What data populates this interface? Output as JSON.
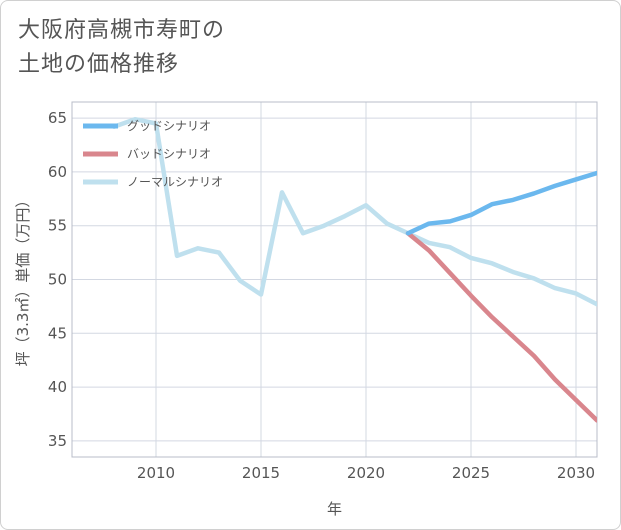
{
  "title": "大阪府高槻市寿町の\n土地の価格推移",
  "chart_data": {
    "type": "line",
    "xlabel": "年",
    "ylabel": "坪（3.3㎡）単価（万円）",
    "xlim": [
      2006,
      2031
    ],
    "ylim": [
      33.5,
      66.5
    ],
    "x_ticks": [
      2010,
      2015,
      2020,
      2025,
      2030
    ],
    "y_ticks": [
      35,
      40,
      45,
      50,
      55,
      60,
      65
    ],
    "grid": true,
    "legend_position": "top-left",
    "series": [
      {
        "name": "グッドシナリオ",
        "color": "#6bb8ee",
        "width": 4.5,
        "x": [
          2022,
          2023,
          2024,
          2025,
          2026,
          2027,
          2028,
          2029,
          2030,
          2031
        ],
        "y": [
          54.3,
          55.2,
          55.4,
          56.0,
          57.0,
          57.4,
          58.0,
          58.7,
          59.3,
          59.9
        ]
      },
      {
        "name": "バッドシナリオ",
        "color": "#d9868d",
        "width": 4.5,
        "x": [
          2022,
          2023,
          2024,
          2025,
          2026,
          2027,
          2028,
          2029,
          2030,
          2031
        ],
        "y": [
          54.3,
          52.7,
          50.6,
          48.5,
          46.5,
          44.7,
          42.9,
          40.7,
          38.8,
          36.9
        ]
      },
      {
        "name": "ノーマルシナリオ",
        "color": "#bfe0ee",
        "width": 4.5,
        "x": [
          2008,
          2009,
          2010,
          2011,
          2012,
          2013,
          2014,
          2015,
          2016,
          2017,
          2018,
          2019,
          2020,
          2021,
          2022,
          2023,
          2024,
          2025,
          2026,
          2027,
          2028,
          2029,
          2030,
          2031
        ],
        "y": [
          64.2,
          64.9,
          64.5,
          52.2,
          52.9,
          52.5,
          49.9,
          48.6,
          58.1,
          54.3,
          55.0,
          55.9,
          56.9,
          55.2,
          54.3,
          53.4,
          53.0,
          52.0,
          51.5,
          50.7,
          50.1,
          49.2,
          48.7,
          47.7
        ]
      }
    ]
  }
}
